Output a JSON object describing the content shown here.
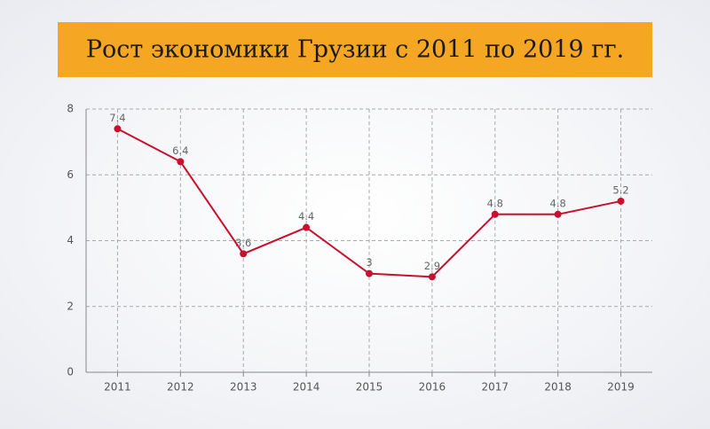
{
  "chart_data": {
    "type": "line",
    "title": "Рост экономики Грузии с 2011 по 2019 гг.",
    "categories": [
      "2011",
      "2012",
      "2013",
      "2014",
      "2015",
      "2016",
      "2017",
      "2018",
      "2019"
    ],
    "values": [
      7.4,
      6.4,
      3.6,
      4.4,
      3,
      2.9,
      4.8,
      4.8,
      5.2
    ],
    "color": "#c8102e",
    "ylim": [
      0,
      8
    ],
    "yticks": [
      0,
      2,
      4,
      6,
      8
    ],
    "grid": true
  }
}
